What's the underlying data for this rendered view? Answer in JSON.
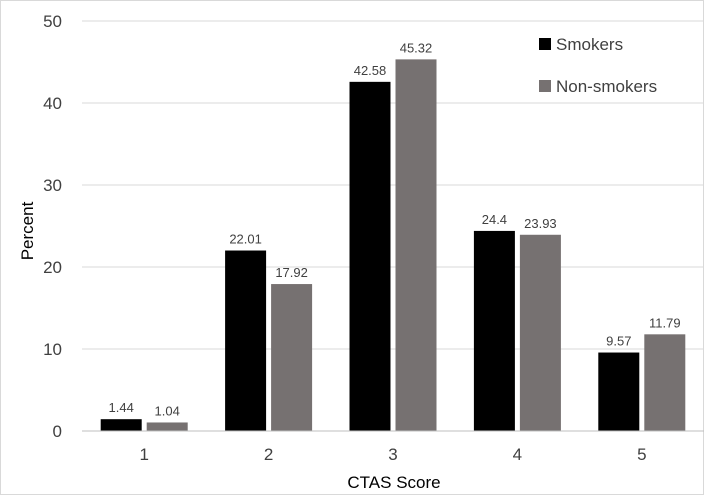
{
  "chart_data": {
    "type": "bar",
    "title": "",
    "xlabel": "CTAS Score",
    "ylabel": "Percent",
    "categories": [
      "1",
      "2",
      "3",
      "4",
      "5"
    ],
    "series": [
      {
        "name": "Smokers",
        "values": [
          1.44,
          22.01,
          42.58,
          24.4,
          9.57
        ],
        "labels": [
          "1.44",
          "22.01",
          "42.58",
          "24.4",
          "9.57"
        ]
      },
      {
        "name": "Non-smokers",
        "values": [
          1.04,
          17.92,
          45.32,
          23.93,
          11.79
        ],
        "labels": [
          "1.04",
          "17.92",
          "45.32",
          "23.93",
          "11.79"
        ]
      }
    ],
    "ylim": [
      0,
      50
    ],
    "yticks": [
      "0",
      "10",
      "20",
      "30",
      "40",
      "50"
    ],
    "grid": true,
    "legend_position": "top-right",
    "colors": {
      "Smokers": "#000000",
      "Non-smokers": "#767171"
    }
  }
}
